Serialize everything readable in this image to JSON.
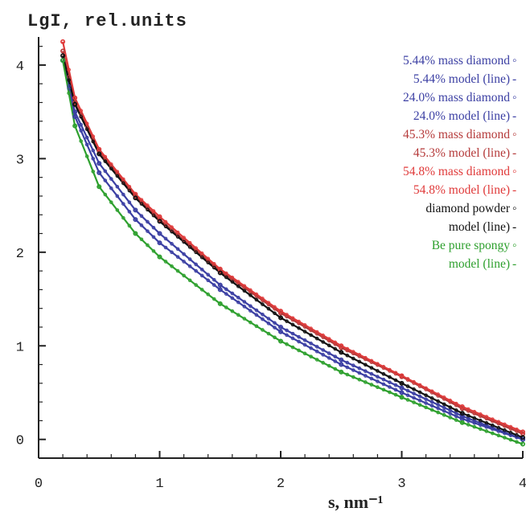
{
  "chart_data": {
    "type": "line",
    "title": "",
    "ylabel": "LgI, rel.units",
    "xlabel": "s, nm⁻¹",
    "xlim": [
      0,
      4
    ],
    "ylim": [
      -0.2,
      4.3
    ],
    "xticks": [
      0,
      1,
      2,
      3,
      4
    ],
    "yticks": [
      0,
      1,
      2,
      3,
      4
    ],
    "grid": false,
    "legend_position": "top-right",
    "series": [
      {
        "name": "5.44% mass diamond",
        "style": "markers",
        "color": "#3b3fa3",
        "x": [
          0.2,
          0.3,
          0.5,
          0.8,
          1.0,
          1.5,
          2.0,
          2.5,
          3.0,
          3.5,
          4.0
        ],
        "y": [
          4.05,
          3.5,
          2.95,
          2.45,
          2.2,
          1.65,
          1.2,
          0.85,
          0.55,
          0.25,
          0.0
        ]
      },
      {
        "name": "5.44% model (line)",
        "style": "line",
        "color": "#3b3fa3",
        "x": [
          0.2,
          0.3,
          0.5,
          0.8,
          1.0,
          1.5,
          2.0,
          2.5,
          3.0,
          3.5,
          4.0
        ],
        "y": [
          4.05,
          3.5,
          2.95,
          2.45,
          2.2,
          1.65,
          1.2,
          0.85,
          0.55,
          0.25,
          0.0
        ]
      },
      {
        "name": "24.0% mass diamond",
        "style": "markers",
        "color": "#3b3fa3",
        "x": [
          0.2,
          0.3,
          0.5,
          0.8,
          1.0,
          1.5,
          2.0,
          2.5,
          3.0,
          3.5,
          4.0
        ],
        "y": [
          4.05,
          3.45,
          2.85,
          2.35,
          2.1,
          1.6,
          1.15,
          0.8,
          0.5,
          0.22,
          0.0
        ]
      },
      {
        "name": "24.0% model (line)",
        "style": "line",
        "color": "#3b3fa3",
        "x": [
          0.2,
          0.3,
          0.5,
          0.8,
          1.0,
          1.5,
          2.0,
          2.5,
          3.0,
          3.5,
          4.0
        ],
        "y": [
          4.05,
          3.45,
          2.85,
          2.35,
          2.1,
          1.6,
          1.15,
          0.8,
          0.5,
          0.22,
          0.0
        ]
      },
      {
        "name": "45.3% mass diamond",
        "style": "markers",
        "color": "#b53a3a",
        "x": [
          0.2,
          0.3,
          0.5,
          0.8,
          1.0,
          1.5,
          2.0,
          2.5,
          3.0,
          3.5,
          4.0
        ],
        "y": [
          4.15,
          3.6,
          3.08,
          2.6,
          2.35,
          1.8,
          1.35,
          0.98,
          0.67,
          0.33,
          0.06
        ]
      },
      {
        "name": "45.3% model (line)",
        "style": "line",
        "color": "#b53a3a",
        "x": [
          0.2,
          0.3,
          0.5,
          0.8,
          1.0,
          1.5,
          2.0,
          2.5,
          3.0,
          3.5,
          4.0
        ],
        "y": [
          4.15,
          3.6,
          3.08,
          2.6,
          2.35,
          1.8,
          1.35,
          0.98,
          0.67,
          0.33,
          0.06
        ]
      },
      {
        "name": "54.8% mass diamond",
        "style": "markers",
        "color": "#e03a3a",
        "x": [
          0.2,
          0.3,
          0.5,
          0.8,
          1.0,
          1.5,
          2.0,
          2.5,
          3.0,
          3.5,
          4.0
        ],
        "y": [
          4.25,
          3.65,
          3.1,
          2.62,
          2.38,
          1.82,
          1.37,
          1.0,
          0.68,
          0.35,
          0.08
        ]
      },
      {
        "name": "54.8% model (line)",
        "style": "line",
        "color": "#e03a3a",
        "x": [
          0.2,
          0.3,
          0.5,
          0.8,
          1.0,
          1.5,
          2.0,
          2.5,
          3.0,
          3.5,
          4.0
        ],
        "y": [
          4.25,
          3.65,
          3.1,
          2.62,
          2.38,
          1.82,
          1.37,
          1.0,
          0.68,
          0.35,
          0.08
        ]
      },
      {
        "name": "diamond powder",
        "style": "markers",
        "color": "#111111",
        "x": [
          0.2,
          0.3,
          0.5,
          0.8,
          1.0,
          1.5,
          2.0,
          2.5,
          3.0,
          3.5,
          4.0
        ],
        "y": [
          4.1,
          3.58,
          3.05,
          2.58,
          2.33,
          1.78,
          1.3,
          0.93,
          0.6,
          0.28,
          0.02
        ]
      },
      {
        "name": "model (line)",
        "style": "line",
        "color": "#111111",
        "x": [
          0.2,
          0.3,
          0.5,
          0.8,
          1.0,
          1.5,
          2.0,
          2.5,
          3.0,
          3.5,
          4.0
        ],
        "y": [
          4.1,
          3.58,
          3.05,
          2.58,
          2.33,
          1.78,
          1.3,
          0.93,
          0.6,
          0.28,
          0.02
        ]
      },
      {
        "name": "Be pure spongy",
        "style": "markers",
        "color": "#2ea02e",
        "x": [
          0.2,
          0.3,
          0.5,
          0.8,
          1.0,
          1.5,
          2.0,
          2.5,
          3.0,
          3.5,
          4.0
        ],
        "y": [
          4.05,
          3.35,
          2.7,
          2.2,
          1.95,
          1.45,
          1.05,
          0.72,
          0.45,
          0.18,
          -0.05
        ]
      },
      {
        "name": "model (line)",
        "style": "line",
        "color": "#2ea02e",
        "x": [
          0.2,
          0.3,
          0.5,
          0.8,
          1.0,
          1.5,
          2.0,
          2.5,
          3.0,
          3.5,
          4.0
        ],
        "y": [
          4.05,
          3.35,
          2.7,
          2.2,
          1.95,
          1.45,
          1.05,
          0.72,
          0.45,
          0.18,
          -0.05
        ]
      }
    ]
  },
  "legend_items": [
    {
      "label": "5.44% mass diamond",
      "symbol": "◦",
      "color": "#3b3fa3"
    },
    {
      "label": "5.44% model (line)",
      "symbol": "-",
      "color": "#3b3fa3"
    },
    {
      "label": "24.0% mass diamond",
      "symbol": "◦",
      "color": "#3b3fa3"
    },
    {
      "label": "24.0% model (line)",
      "symbol": "-",
      "color": "#3b3fa3"
    },
    {
      "label": "45.3% mass diamond",
      "symbol": "◦",
      "color": "#b53a3a"
    },
    {
      "label": "45.3% model (line)",
      "symbol": "-",
      "color": "#b53a3a"
    },
    {
      "label": "54.8% mass diamond",
      "symbol": "◦",
      "color": "#e03a3a"
    },
    {
      "label": "54.8% model (line)",
      "symbol": "-",
      "color": "#e03a3a"
    },
    {
      "label": "diamond powder",
      "symbol": "◦",
      "color": "#111111"
    },
    {
      "label": "model (line)",
      "symbol": "-",
      "color": "#111111"
    },
    {
      "label": "Be pure spongy",
      "symbol": "◦",
      "color": "#2ea02e"
    },
    {
      "label": "model (line)",
      "symbol": "-",
      "color": "#2ea02e"
    }
  ]
}
